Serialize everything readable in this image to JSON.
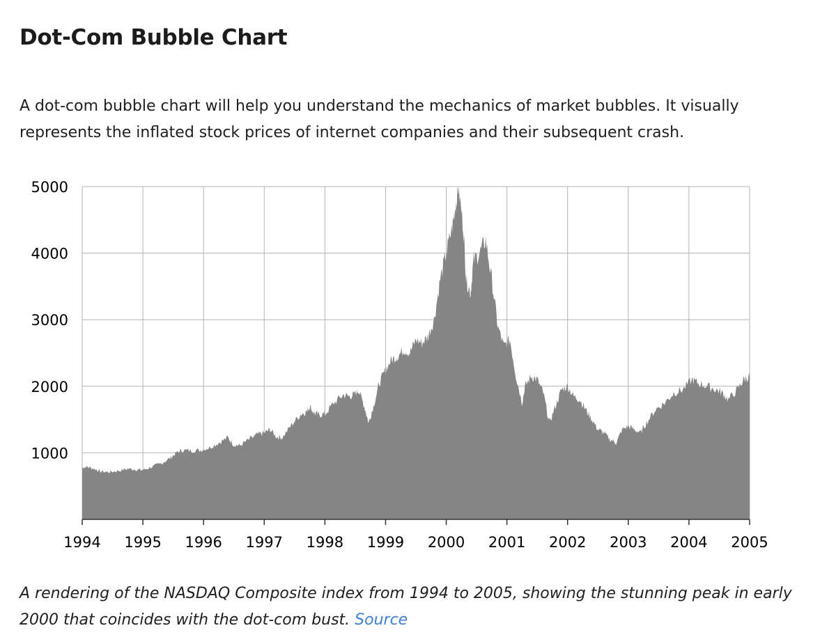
{
  "article": {
    "heading": "Dot-Com Bubble Chart",
    "intro": "A dot-com bubble chart will help you understand the mechanics of market bubbles. It visually represents the inflated stock prices of internet companies and their subsequent crash.",
    "caption": "A rendering of the NASDAQ Composite index from 1994 to 2005, showing the stunning peak in early 2000 that coincides with the dot-com bust.",
    "source_link": "Source"
  },
  "colors": {
    "area_fill": "#858585",
    "grid": "#b5b5b5",
    "axis": "#333333",
    "link": "#3f7fd6"
  },
  "chart_data": {
    "type": "area",
    "title": "",
    "xlabel": "",
    "ylabel": "",
    "xlim": [
      1994,
      2005
    ],
    "ylim": [
      0,
      5000
    ],
    "x_ticks": [
      1994,
      1995,
      1996,
      1997,
      1998,
      1999,
      2000,
      2001,
      2002,
      2003,
      2004,
      2005
    ],
    "y_ticks": [
      1000,
      2000,
      3000,
      4000,
      5000
    ],
    "y_tick_labels": [
      "1000",
      "2000",
      "3000",
      "4000",
      "5000"
    ],
    "grid": true,
    "legend": "none",
    "series": [
      {
        "values": [
          [
            1994.0,
            780
          ],
          [
            1994.08,
            790
          ],
          [
            1994.2,
            760
          ],
          [
            1994.3,
            720
          ],
          [
            1994.45,
            710
          ],
          [
            1994.6,
            730
          ],
          [
            1994.75,
            760
          ],
          [
            1994.9,
            750
          ],
          [
            1995.0,
            740
          ],
          [
            1995.15,
            790
          ],
          [
            1995.3,
            840
          ],
          [
            1995.45,
            920
          ],
          [
            1995.55,
            1000
          ],
          [
            1995.65,
            1040
          ],
          [
            1995.8,
            1030
          ],
          [
            1995.95,
            1040
          ],
          [
            1996.1,
            1080
          ],
          [
            1996.25,
            1150
          ],
          [
            1996.4,
            1230
          ],
          [
            1996.5,
            1120
          ],
          [
            1996.6,
            1110
          ],
          [
            1996.75,
            1200
          ],
          [
            1996.9,
            1280
          ],
          [
            1997.0,
            1300
          ],
          [
            1997.1,
            1350
          ],
          [
            1997.2,
            1240
          ],
          [
            1997.3,
            1230
          ],
          [
            1997.45,
            1420
          ],
          [
            1997.6,
            1580
          ],
          [
            1997.7,
            1620
          ],
          [
            1997.75,
            1700
          ],
          [
            1997.82,
            1600
          ],
          [
            1997.9,
            1570
          ],
          [
            1998.0,
            1580
          ],
          [
            1998.15,
            1750
          ],
          [
            1998.3,
            1870
          ],
          [
            1998.4,
            1850
          ],
          [
            1998.5,
            1880
          ],
          [
            1998.55,
            1950
          ],
          [
            1998.65,
            1700
          ],
          [
            1998.72,
            1450
          ],
          [
            1998.8,
            1700
          ],
          [
            1998.9,
            2050
          ],
          [
            1999.0,
            2250
          ],
          [
            1999.1,
            2400
          ],
          [
            1999.2,
            2450
          ],
          [
            1999.3,
            2550
          ],
          [
            1999.4,
            2500
          ],
          [
            1999.5,
            2700
          ],
          [
            1999.6,
            2650
          ],
          [
            1999.7,
            2750
          ],
          [
            1999.8,
            3000
          ],
          [
            1999.9,
            3600
          ],
          [
            2000.0,
            4000
          ],
          [
            2000.1,
            4400
          ],
          [
            2000.15,
            4700
          ],
          [
            2000.2,
            5000
          ],
          [
            2000.28,
            4400
          ],
          [
            2000.33,
            3600
          ],
          [
            2000.4,
            3400
          ],
          [
            2000.45,
            3900
          ],
          [
            2000.55,
            4000
          ],
          [
            2000.65,
            4200
          ],
          [
            2000.75,
            3600
          ],
          [
            2000.85,
            2900
          ],
          [
            2000.95,
            2600
          ],
          [
            2001.05,
            2700
          ],
          [
            2001.15,
            2150
          ],
          [
            2001.25,
            1750
          ],
          [
            2001.3,
            2000
          ],
          [
            2001.4,
            2150
          ],
          [
            2001.5,
            2100
          ],
          [
            2001.6,
            1900
          ],
          [
            2001.7,
            1450
          ],
          [
            2001.8,
            1700
          ],
          [
            2001.9,
            1950
          ],
          [
            2002.0,
            2000
          ],
          [
            2002.1,
            1850
          ],
          [
            2002.2,
            1800
          ],
          [
            2002.3,
            1650
          ],
          [
            2002.4,
            1500
          ],
          [
            2002.5,
            1350
          ],
          [
            2002.6,
            1300
          ],
          [
            2002.7,
            1200
          ],
          [
            2002.8,
            1150
          ],
          [
            2002.9,
            1350
          ],
          [
            2003.0,
            1400
          ],
          [
            2003.1,
            1350
          ],
          [
            2003.2,
            1300
          ],
          [
            2003.3,
            1450
          ],
          [
            2003.45,
            1650
          ],
          [
            2003.6,
            1750
          ],
          [
            2003.75,
            1900
          ],
          [
            2003.9,
            1950
          ],
          [
            2004.05,
            2100
          ],
          [
            2004.15,
            2050
          ],
          [
            2004.3,
            2000
          ],
          [
            2004.45,
            1950
          ],
          [
            2004.55,
            1900
          ],
          [
            2004.65,
            1800
          ],
          [
            2004.8,
            1950
          ],
          [
            2004.9,
            2100
          ],
          [
            2005.0,
            2150
          ]
        ]
      }
    ]
  }
}
